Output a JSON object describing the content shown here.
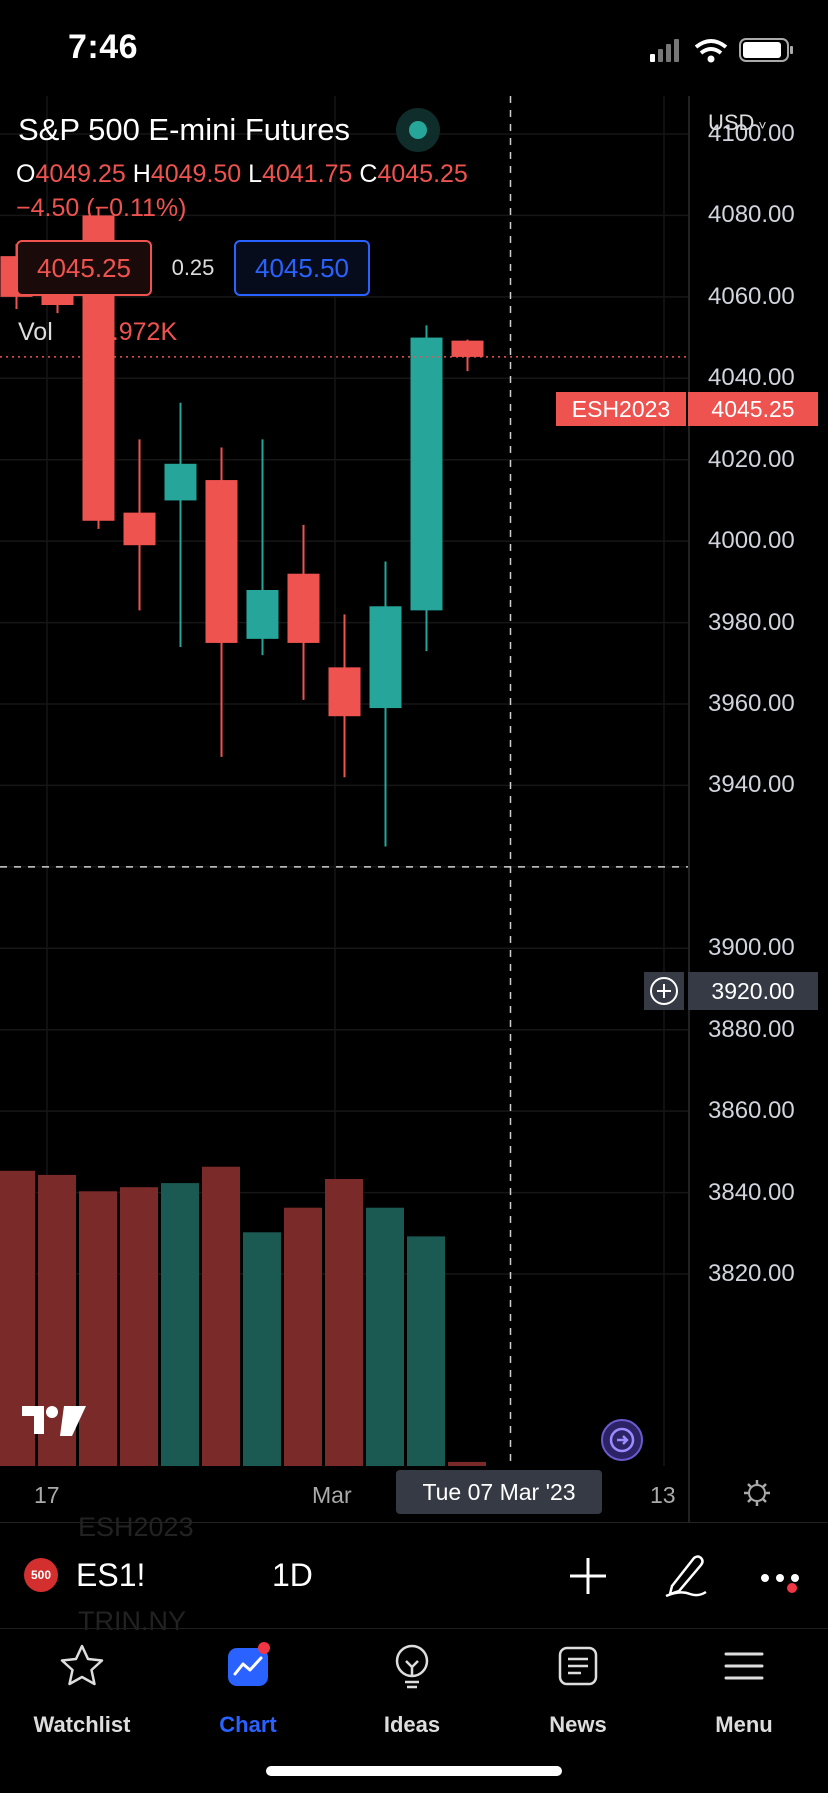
{
  "status_bar": {
    "time": "7:46"
  },
  "instrument": {
    "title": "S&P 500 E-mini Futures",
    "ohlc": {
      "o_label": "O",
      "o_value": "4049.25",
      "h_label": "H",
      "h_value": "4049.50",
      "l_label": "L",
      "l_value": "4041.75",
      "c_label": "C",
      "c_value": "4045.25"
    },
    "change": "−4.50 (−0.11%)",
    "sell_price": "4045.25",
    "spread": "0.25",
    "buy_price": "4045.50",
    "volume_label": "Vol",
    "volume_value": "19.972K"
  },
  "axis": {
    "currency": "USD",
    "y_labels": [
      "4100.00",
      "4080.00",
      "4060.00",
      "4040.00",
      "4020.00",
      "4000.00",
      "3980.00",
      "3960.00",
      "3940.00",
      "3920.00",
      "3900.00",
      "3880.00",
      "3860.00",
      "3840.00",
      "3820.00"
    ],
    "symbol_tag": "ESH2023",
    "last_price_tag": "4045.25",
    "crosshair_price": "3920.00",
    "x_labels": {
      "left": "17",
      "mid": "Mar",
      "right": "13"
    },
    "crosshair_date": "Tue 07 Mar '23"
  },
  "colors": {
    "up": "#26a69a",
    "down": "#ef5350",
    "up_volume": "#1a5a52",
    "down_volume": "#7a2a28",
    "accent": "#2962ff",
    "background": "#000000"
  },
  "chart_data": {
    "type": "candlestick",
    "title": "S&P 500 E-mini Futures",
    "symbol": "ESH2023",
    "interval": "1D",
    "ylim": [
      3820,
      4100
    ],
    "candles": [
      {
        "open": 4070,
        "high": 4073,
        "low": 4057,
        "close": 4060
      },
      {
        "open": 4062,
        "high": 4065,
        "low": 4056,
        "close": 4058
      },
      {
        "open": 4080,
        "high": 4082,
        "low": 4003,
        "close": 4005
      },
      {
        "open": 4007,
        "high": 4025,
        "low": 3983,
        "close": 3999
      },
      {
        "open": 4010,
        "high": 4034,
        "low": 3974,
        "close": 4019
      },
      {
        "open": 4015,
        "high": 4023,
        "low": 3947,
        "close": 3975
      },
      {
        "open": 3976,
        "high": 4025,
        "low": 3972,
        "close": 3988
      },
      {
        "open": 3992,
        "high": 4004,
        "low": 3961,
        "close": 3975
      },
      {
        "open": 3969,
        "high": 3982,
        "low": 3942,
        "close": 3957
      },
      {
        "open": 3959,
        "high": 3995,
        "low": 3925,
        "close": 3984
      },
      {
        "open": 3983,
        "high": 4053,
        "low": 3973,
        "close": 4050
      },
      {
        "open": 4049.25,
        "high": 4049.5,
        "low": 4041.75,
        "close": 4045.25
      }
    ],
    "volume_relative": [
      0.72,
      0.71,
      0.67,
      0.68,
      0.69,
      0.73,
      0.57,
      0.63,
      0.7,
      0.63,
      0.56,
      0.01
    ],
    "last_price": 4045.25,
    "crosshair": {
      "price": 3920,
      "date": "Tue 07 Mar '23"
    },
    "x_ticks": [
      "17",
      "Mar",
      "13"
    ]
  },
  "toolbar": {
    "symbol_badge": "500",
    "symbol": "ES1!",
    "interval": "1D"
  },
  "ghost_rows": [
    "ESH2023",
    "TRIN.NY"
  ],
  "bottom_nav": [
    {
      "label": "Watchlist"
    },
    {
      "label": "Chart"
    },
    {
      "label": "Ideas"
    },
    {
      "label": "News"
    },
    {
      "label": "Menu"
    }
  ]
}
